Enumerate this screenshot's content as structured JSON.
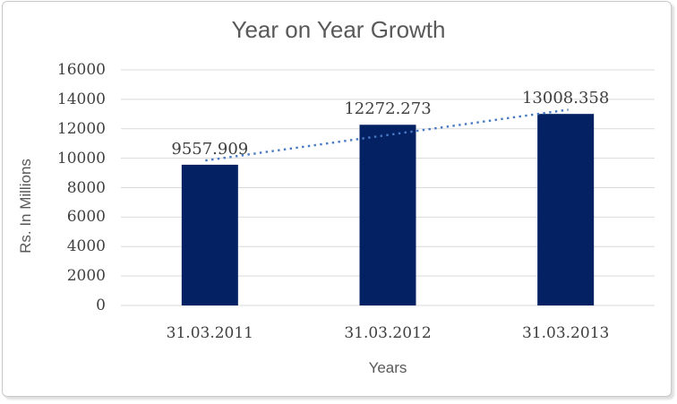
{
  "chart": {
    "title": "Year on Year Growth",
    "x_axis_title": "Years",
    "y_axis_title": "Rs. In Millions"
  },
  "chart_data": {
    "type": "bar",
    "title": "Year on Year Growth",
    "xlabel": "Years",
    "ylabel": "Rs. In Millions",
    "categories": [
      "31.03.2011",
      "31.03.2012",
      "31.03.2013"
    ],
    "values": [
      9557.909,
      12272.273,
      13008.358
    ],
    "data_labels": [
      "9557.909",
      "12272.273",
      "13008.358"
    ],
    "ylim": [
      0,
      16000
    ],
    "y_tick_step": 2000,
    "y_ticks": [
      0,
      2000,
      4000,
      6000,
      8000,
      10000,
      12000,
      14000,
      16000
    ],
    "grid": true,
    "legend": "none",
    "trendline": {
      "type": "linear",
      "style": "dotted"
    },
    "colors": {
      "bar": "#032163",
      "trendline": "#4779C4",
      "gridline": "#D9D9D9",
      "title_text": "#595959",
      "tick_text": "#3F3F3F",
      "frame_border": "#C9C9C9",
      "background": "#FFFFFF"
    }
  }
}
